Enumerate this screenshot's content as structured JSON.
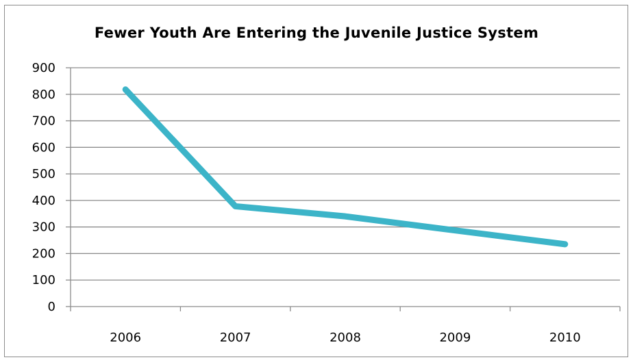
{
  "chart_data": {
    "type": "line",
    "title": "Fewer Youth Are Entering the Juvenile Justice System",
    "xlabel": "",
    "ylabel": "",
    "categories": [
      "2006",
      "2007",
      "2008",
      "2009",
      "2010"
    ],
    "series": [
      {
        "values": [
          818,
          378,
          340,
          287,
          235
        ],
        "color": "#3cb4c8"
      }
    ],
    "ylim": [
      0,
      900
    ],
    "yticks": [
      0,
      100,
      200,
      300,
      400,
      500,
      600,
      700,
      800,
      900
    ],
    "grid": true,
    "legend": "none"
  }
}
